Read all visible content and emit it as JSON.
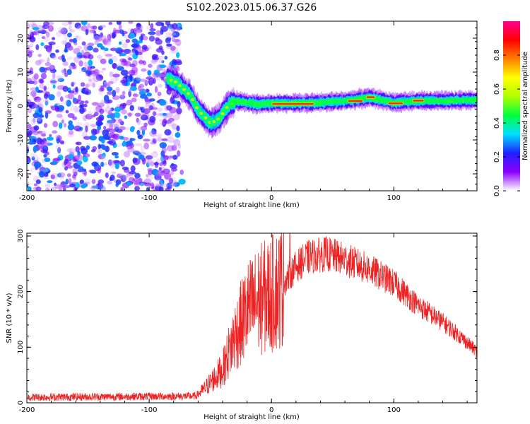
{
  "title": "S102.2023.015.06.37.G26",
  "chart_data": [
    {
      "type": "heatmap",
      "name": "spectrogram",
      "xlabel": "Height of straight line (km)",
      "ylabel": "Frequency (Hz)",
      "xlim": [
        -200,
        168
      ],
      "ylim": [
        -25,
        25
      ],
      "xticks": [
        -200,
        -100,
        0,
        100
      ],
      "yticks": [
        -20,
        -10,
        0,
        10,
        20
      ],
      "colorbar": {
        "label": "Normalized spectral amplitude",
        "range": [
          0.0,
          1.0
        ],
        "ticks": [
          0.0,
          0.2,
          0.4,
          0.6,
          0.8
        ],
        "tick_labels": [
          "0.0",
          "0.2",
          "0.4",
          "0.6",
          "0.8"
        ],
        "colors": [
          "#ffffff",
          "#8a00ff",
          "#2020ff",
          "#00e0ff",
          "#00ff40",
          "#b0ff00",
          "#ffff00",
          "#ff8000",
          "#ff0000",
          "#ff0090"
        ]
      },
      "noise_region": {
        "x_from": -200,
        "x_to": -75,
        "amplitude": 0.18
      },
      "ridge": [
        {
          "x": -85,
          "f": 8
        },
        {
          "x": -78,
          "f": 7
        },
        {
          "x": -72,
          "f": 5
        },
        {
          "x": -66,
          "f": 3
        },
        {
          "x": -62,
          "f": 0
        },
        {
          "x": -58,
          "f": -2
        },
        {
          "x": -54,
          "f": -3.5
        },
        {
          "x": -50,
          "f": -5
        },
        {
          "x": -46,
          "f": -4.5
        },
        {
          "x": -42,
          "f": -3.5
        },
        {
          "x": -38,
          "f": -1
        },
        {
          "x": -34,
          "f": 0.5
        },
        {
          "x": -28,
          "f": 1.5
        },
        {
          "x": -20,
          "f": 1
        },
        {
          "x": -10,
          "f": 0.5
        },
        {
          "x": 0,
          "f": 0.8
        },
        {
          "x": 20,
          "f": 0.8
        },
        {
          "x": 40,
          "f": 1
        },
        {
          "x": 60,
          "f": 1.5
        },
        {
          "x": 80,
          "f": 2.5
        },
        {
          "x": 100,
          "f": 1
        },
        {
          "x": 120,
          "f": 1.5
        },
        {
          "x": 140,
          "f": 1.5
        },
        {
          "x": 168,
          "f": 1.8
        }
      ],
      "peak_segments": [
        {
          "x_from": 0,
          "x_to": 35,
          "f": 0.6
        },
        {
          "x_from": 62,
          "x_to": 75,
          "f": 1.5
        },
        {
          "x_from": 77,
          "x_to": 85,
          "f": 2.6
        },
        {
          "x_from": 95,
          "x_to": 108,
          "f": 0.8
        },
        {
          "x_from": 115,
          "x_to": 125,
          "f": 1.6
        }
      ]
    },
    {
      "type": "line",
      "name": "snr",
      "xlabel": "Height of straight line (km)",
      "ylabel": "SNR (10 * v/v)",
      "xlim": [
        -200,
        168
      ],
      "ylim": [
        0,
        305
      ],
      "xticks": [
        -200,
        -100,
        0,
        100
      ],
      "yticks": [
        0,
        100,
        200,
        300
      ],
      "color": "#ee2222",
      "envelope": [
        {
          "x": -200,
          "y": 10
        },
        {
          "x": -62,
          "y": 12
        },
        {
          "x": -55,
          "y": 25
        },
        {
          "x": -40,
          "y": 60
        },
        {
          "x": -30,
          "y": 120
        },
        {
          "x": -20,
          "y": 165
        },
        {
          "x": -10,
          "y": 185
        },
        {
          "x": 0,
          "y": 195
        },
        {
          "x": 10,
          "y": 215
        },
        {
          "x": 20,
          "y": 245
        },
        {
          "x": 30,
          "y": 262
        },
        {
          "x": 45,
          "y": 268
        },
        {
          "x": 60,
          "y": 258
        },
        {
          "x": 80,
          "y": 240
        },
        {
          "x": 100,
          "y": 215
        },
        {
          "x": 120,
          "y": 175
        },
        {
          "x": 140,
          "y": 145
        },
        {
          "x": 155,
          "y": 118
        },
        {
          "x": 168,
          "y": 92
        }
      ],
      "spike": {
        "x": 15,
        "y": 305
      }
    }
  ]
}
